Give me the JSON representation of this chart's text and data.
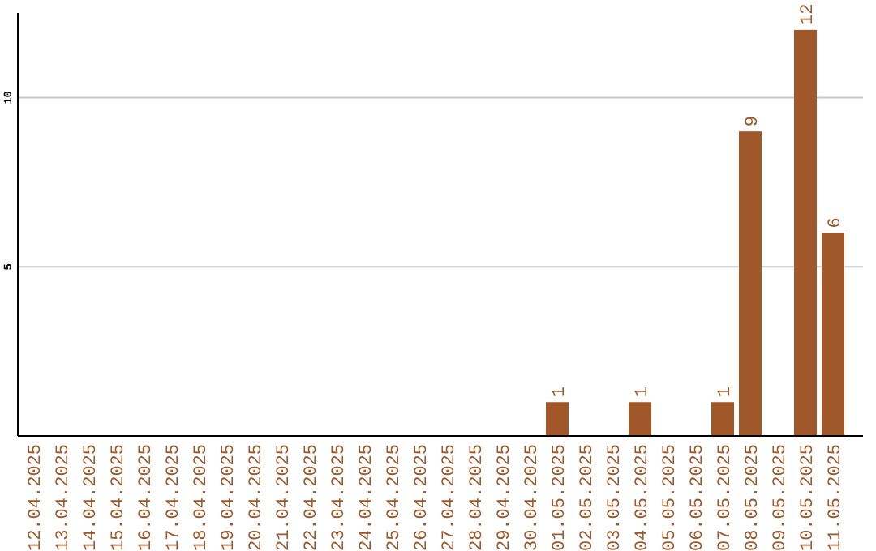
{
  "chart_data": {
    "type": "bar",
    "categories": [
      "12.04.2025",
      "13.04.2025",
      "14.04.2025",
      "15.04.2025",
      "16.04.2025",
      "17.04.2025",
      "18.04.2025",
      "19.04.2025",
      "20.04.2025",
      "21.04.2025",
      "22.04.2025",
      "23.04.2025",
      "24.04.2025",
      "25.04.2025",
      "26.04.2025",
      "27.04.2025",
      "28.04.2025",
      "29.04.2025",
      "30.04.2025",
      "01.05.2025",
      "02.05.2025",
      "03.05.2025",
      "04.05.2025",
      "05.05.2025",
      "06.05.2025",
      "07.05.2025",
      "08.05.2025",
      "09.05.2025",
      "10.05.2025",
      "11.05.2025"
    ],
    "values": [
      0,
      0,
      0,
      0,
      0,
      0,
      0,
      0,
      0,
      0,
      0,
      0,
      0,
      0,
      0,
      0,
      0,
      0,
      0,
      1,
      0,
      0,
      1,
      0,
      0,
      1,
      9,
      0,
      12,
      6
    ],
    "value_labels": [
      null,
      null,
      null,
      null,
      null,
      null,
      null,
      null,
      null,
      null,
      null,
      null,
      null,
      null,
      null,
      null,
      null,
      null,
      null,
      "1",
      null,
      null,
      "1",
      null,
      null,
      "1",
      "9",
      null,
      "12",
      "6"
    ],
    "color": "#a0572a",
    "ylim": [
      0,
      12.5
    ],
    "yticks": [
      5,
      10
    ],
    "grid": "y"
  }
}
